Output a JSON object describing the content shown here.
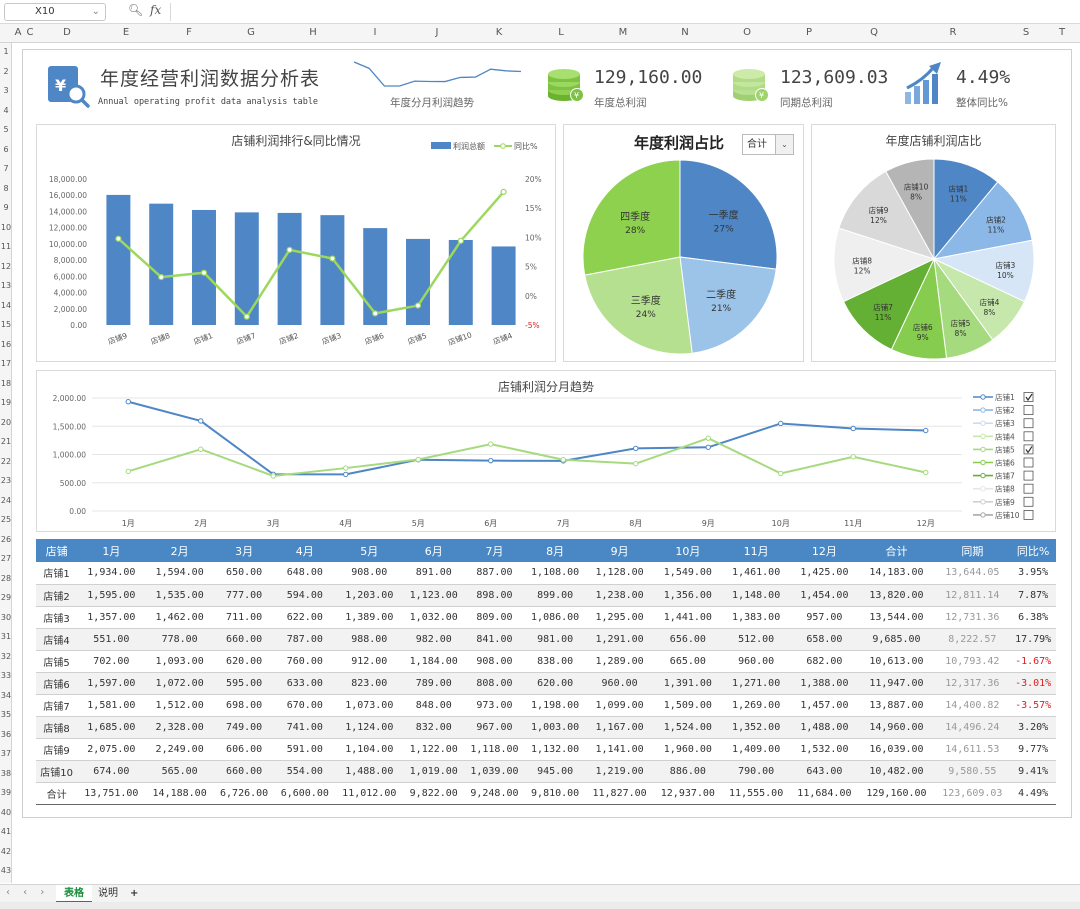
{
  "formula_bar": {
    "cell_ref": "X10",
    "fx": "fx",
    "formula": ""
  },
  "columns": [
    "A",
    "C",
    "D",
    "E",
    "F",
    "G",
    "H",
    "I",
    "J",
    "K",
    "L",
    "M",
    "N",
    "O",
    "P",
    "Q",
    "R",
    "S",
    "T"
  ],
  "rows": [
    "1",
    "2",
    "3",
    "4",
    "5",
    "6",
    "7",
    "8",
    "9",
    "10",
    "11",
    "12",
    "13",
    "14",
    "15",
    "16",
    "17",
    "18",
    "19",
    "20",
    "21",
    "22",
    "23",
    "24",
    "25",
    "26",
    "27",
    "28",
    "29",
    "30",
    "31",
    "32",
    "33",
    "34",
    "35",
    "36",
    "37",
    "38",
    "39",
    "40",
    "41",
    "42",
    "43"
  ],
  "header": {
    "title": "年度经营利润数据分析表",
    "subtitle": "Annual operating profit data analysis table",
    "spark_label": "年度分月利润趋势",
    "spark_values": [
      1934,
      1594,
      650,
      648,
      908,
      891,
      887,
      1108,
      1128,
      1549,
      1461,
      1425
    ]
  },
  "kpis": [
    {
      "value": "129,160.00",
      "label": "年度总利润",
      "icon": "coin-stack-icon",
      "color": "#7dc242"
    },
    {
      "value": "123,609.03",
      "label": "同期总利润",
      "icon": "coin-stack-icon",
      "color": "#9fd36d"
    },
    {
      "value": "4.49%",
      "label": "整体同比%",
      "icon": "growth-bar-icon",
      "color": "#5b8fd0"
    }
  ],
  "charts": {
    "bar": {
      "title": "店铺利润排行&同比情况",
      "legend_bar": "利润总额",
      "legend_line": "同比%",
      "colors": {
        "bar": "#4f86c6",
        "line": "#9cd85e"
      },
      "categories": [
        "店铺9",
        "店铺8",
        "店铺1",
        "店铺7",
        "店铺2",
        "店铺3",
        "店铺6",
        "店铺5",
        "店铺10",
        "店铺4"
      ],
      "values": [
        16039,
        14960,
        14183,
        13887,
        13820,
        13544,
        11947,
        10613,
        10482,
        9685
      ],
      "yoy": [
        9.77,
        3.2,
        3.95,
        -3.57,
        7.87,
        6.38,
        -3.01,
        -1.67,
        9.41,
        17.79
      ],
      "y_ticks": [
        "18,000.00",
        "16,000.00",
        "14,000.00",
        "12,000.00",
        "10,000.00",
        "8,000.00",
        "6,000.00",
        "4,000.00",
        "2,000.00",
        "0.00"
      ],
      "y2_ticks": [
        "20%",
        "15%",
        "10%",
        "5%",
        "0%",
        "-5%"
      ],
      "ylim": [
        0,
        18000
      ],
      "y2lim": [
        -5,
        20
      ]
    },
    "quarter": {
      "title": "年度利润占比",
      "select": "合计",
      "slices": [
        {
          "label": "一季度",
          "pct": "27%",
          "value": 27,
          "color": "#4f86c6"
        },
        {
          "label": "二季度",
          "pct": "21%",
          "value": 21,
          "color": "#9cc3e8"
        },
        {
          "label": "三季度",
          "pct": "24%",
          "value": 24,
          "color": "#b5e08f"
        },
        {
          "label": "四季度",
          "pct": "28%",
          "value": 28,
          "color": "#8ed14f"
        }
      ]
    },
    "stores": {
      "title": "年度店铺利润店比",
      "slices": [
        {
          "label": "店铺1",
          "pct": "11%",
          "value": 11,
          "color": "#4f86c6"
        },
        {
          "label": "店铺2",
          "pct": "11%",
          "value": 11,
          "color": "#8bb8e6"
        },
        {
          "label": "店铺3",
          "pct": "10%",
          "value": 10,
          "color": "#d6e6f6"
        },
        {
          "label": "店铺4",
          "pct": "8%",
          "value": 8,
          "color": "#c7e8ad"
        },
        {
          "label": "店铺5",
          "pct": "8%",
          "value": 8,
          "color": "#a6da7e"
        },
        {
          "label": "店铺6",
          "pct": "9%",
          "value": 9,
          "color": "#86cc4f"
        },
        {
          "label": "店铺7",
          "pct": "11%",
          "value": 11,
          "color": "#64b035"
        },
        {
          "label": "店铺8",
          "pct": "12%",
          "value": 12,
          "color": "#efefef"
        },
        {
          "label": "店铺9",
          "pct": "12%",
          "value": 12,
          "color": "#d9d9d9"
        },
        {
          "label": "店铺10",
          "pct": "8%",
          "value": 8,
          "color": "#b5b5b5"
        }
      ]
    },
    "trend": {
      "title": "店铺利润分月趋势",
      "months": [
        "1月",
        "2月",
        "3月",
        "4月",
        "5月",
        "6月",
        "7月",
        "8月",
        "9月",
        "10月",
        "11月",
        "12月"
      ],
      "y_ticks": [
        "2,000.00",
        "1,500.00",
        "1,000.00",
        "500.00",
        "0.00"
      ],
      "ylim": [
        0,
        2000
      ],
      "series": [
        {
          "name": "店铺1",
          "checked": true,
          "color": "#4f86c6",
          "values": [
            1934,
            1594,
            650,
            648,
            908,
            891,
            887,
            1108,
            1128,
            1549,
            1461,
            1425
          ]
        },
        {
          "name": "店铺2",
          "checked": false,
          "color": "#8bb8e6",
          "values": []
        },
        {
          "name": "店铺3",
          "checked": false,
          "color": "#c9ddf2",
          "values": []
        },
        {
          "name": "店铺4",
          "checked": false,
          "color": "#c7e8ad",
          "values": []
        },
        {
          "name": "店铺5",
          "checked": true,
          "color": "#a6da7e",
          "values": [
            702,
            1093,
            620,
            760,
            912,
            1184,
            908,
            838,
            1289,
            665,
            960,
            682
          ]
        },
        {
          "name": "店铺6",
          "checked": false,
          "color": "#86cc4f",
          "values": []
        },
        {
          "name": "店铺7",
          "checked": false,
          "color": "#64b035",
          "values": []
        },
        {
          "name": "店铺8",
          "checked": false,
          "color": "#e6e6e6",
          "values": []
        },
        {
          "name": "店铺9",
          "checked": false,
          "color": "#d0d0d0",
          "values": []
        },
        {
          "name": "店铺10",
          "checked": false,
          "color": "#a8a8a8",
          "values": []
        }
      ]
    }
  },
  "table": {
    "headers": [
      "店铺",
      "1月",
      "2月",
      "3月",
      "4月",
      "5月",
      "6月",
      "7月",
      "8月",
      "9月",
      "10月",
      "11月",
      "12月",
      "合计",
      "同期",
      "同比%"
    ],
    "rows": [
      [
        "店铺1",
        "1,934.00",
        "1,594.00",
        "650.00",
        "648.00",
        "908.00",
        "891.00",
        "887.00",
        "1,108.00",
        "1,128.00",
        "1,549.00",
        "1,461.00",
        "1,425.00",
        "14,183.00",
        "13,644.05",
        "3.95%"
      ],
      [
        "店铺2",
        "1,595.00",
        "1,535.00",
        "777.00",
        "594.00",
        "1,203.00",
        "1,123.00",
        "898.00",
        "899.00",
        "1,238.00",
        "1,356.00",
        "1,148.00",
        "1,454.00",
        "13,820.00",
        "12,811.14",
        "7.87%"
      ],
      [
        "店铺3",
        "1,357.00",
        "1,462.00",
        "711.00",
        "622.00",
        "1,389.00",
        "1,032.00",
        "809.00",
        "1,086.00",
        "1,295.00",
        "1,441.00",
        "1,383.00",
        "957.00",
        "13,544.00",
        "12,731.36",
        "6.38%"
      ],
      [
        "店铺4",
        "551.00",
        "778.00",
        "660.00",
        "787.00",
        "988.00",
        "982.00",
        "841.00",
        "981.00",
        "1,291.00",
        "656.00",
        "512.00",
        "658.00",
        "9,685.00",
        "8,222.57",
        "17.79%"
      ],
      [
        "店铺5",
        "702.00",
        "1,093.00",
        "620.00",
        "760.00",
        "912.00",
        "1,184.00",
        "908.00",
        "838.00",
        "1,289.00",
        "665.00",
        "960.00",
        "682.00",
        "10,613.00",
        "10,793.42",
        "-1.67%"
      ],
      [
        "店铺6",
        "1,597.00",
        "1,072.00",
        "595.00",
        "633.00",
        "823.00",
        "789.00",
        "808.00",
        "620.00",
        "960.00",
        "1,391.00",
        "1,271.00",
        "1,388.00",
        "11,947.00",
        "12,317.36",
        "-3.01%"
      ],
      [
        "店铺7",
        "1,581.00",
        "1,512.00",
        "698.00",
        "670.00",
        "1,073.00",
        "848.00",
        "973.00",
        "1,198.00",
        "1,099.00",
        "1,509.00",
        "1,269.00",
        "1,457.00",
        "13,887.00",
        "14,400.82",
        "-3.57%"
      ],
      [
        "店铺8",
        "1,685.00",
        "2,328.00",
        "749.00",
        "741.00",
        "1,124.00",
        "832.00",
        "967.00",
        "1,003.00",
        "1,167.00",
        "1,524.00",
        "1,352.00",
        "1,488.00",
        "14,960.00",
        "14,496.24",
        "3.20%"
      ],
      [
        "店铺9",
        "2,075.00",
        "2,249.00",
        "606.00",
        "591.00",
        "1,104.00",
        "1,122.00",
        "1,118.00",
        "1,132.00",
        "1,141.00",
        "1,960.00",
        "1,409.00",
        "1,532.00",
        "16,039.00",
        "14,611.53",
        "9.77%"
      ],
      [
        "店铺10",
        "674.00",
        "565.00",
        "660.00",
        "554.00",
        "1,488.00",
        "1,019.00",
        "1,039.00",
        "945.00",
        "1,219.00",
        "886.00",
        "790.00",
        "643.00",
        "10,482.00",
        "9,580.55",
        "9.41%"
      ]
    ],
    "total": [
      "合计",
      "13,751.00",
      "14,188.00",
      "6,726.00",
      "6,600.00",
      "11,012.00",
      "9,822.00",
      "9,248.00",
      "9,810.00",
      "11,827.00",
      "12,937.00",
      "11,555.00",
      "11,684.00",
      "129,160.00",
      "123,609.03",
      "4.49%"
    ]
  },
  "sheet_tabs": [
    {
      "label": "表格",
      "active": true
    },
    {
      "label": "说明",
      "active": false
    }
  ],
  "add_sheet": "+",
  "sheet_nav": "‹ ‹ › ›"
}
